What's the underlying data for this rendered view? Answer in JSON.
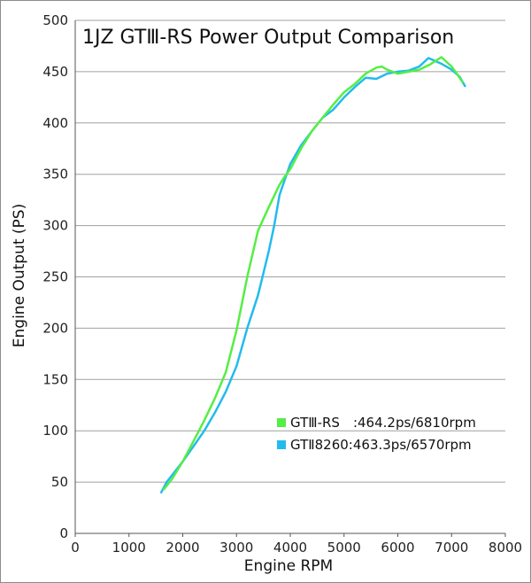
{
  "chart_data": {
    "type": "line",
    "title": "1JZ GTⅢ-RS Power Output Comparison",
    "xlabel": "Engine RPM",
    "ylabel": "Engine Output (PS)",
    "xlim": [
      0,
      8000
    ],
    "ylim": [
      0,
      500
    ],
    "xticks": [
      "0",
      "1000",
      "2000",
      "3000",
      "4000",
      "5000",
      "6000",
      "7000",
      "8000"
    ],
    "yticks": [
      "0",
      "50",
      "100",
      "150",
      "200",
      "250",
      "300",
      "350",
      "400",
      "450",
      "500"
    ],
    "grid": "horizontal",
    "legend_position": "bottom-right",
    "series": [
      {
        "name": "GTⅢ-RS　:464.2ps/6810rpm",
        "color": "#55ee44",
        "x": [
          1650,
          1800,
          2000,
          2200,
          2400,
          2600,
          2800,
          3000,
          3200,
          3400,
          3600,
          3800,
          3900,
          4000,
          4200,
          4400,
          4600,
          4800,
          5000,
          5200,
          5400,
          5600,
          5700,
          5800,
          6000,
          6200,
          6400,
          6600,
          6810,
          7000,
          7100,
          7200
        ],
        "y": [
          43,
          53,
          70,
          90,
          110,
          132,
          157,
          198,
          250,
          295,
          318,
          340,
          348,
          355,
          375,
          392,
          405,
          418,
          430,
          438,
          448,
          454,
          455,
          452,
          448,
          450,
          452,
          457,
          464.2,
          455,
          448,
          440
        ]
      },
      {
        "name": "GTⅡ8260:463.3ps/6570rpm",
        "color": "#22bbee",
        "x": [
          1600,
          1700,
          1850,
          2000,
          2200,
          2400,
          2600,
          2800,
          3000,
          3200,
          3400,
          3600,
          3700,
          3800,
          3900,
          4000,
          4200,
          4400,
          4600,
          4800,
          5000,
          5200,
          5400,
          5600,
          5800,
          6000,
          6200,
          6400,
          6570,
          6800,
          7000,
          7150,
          7250
        ],
        "y": [
          40,
          50,
          60,
          70,
          85,
          100,
          118,
          138,
          163,
          200,
          232,
          275,
          300,
          330,
          345,
          360,
          378,
          392,
          405,
          413,
          425,
          435,
          444,
          443,
          448,
          450,
          451,
          455,
          463.3,
          458,
          452,
          445,
          436
        ]
      }
    ]
  }
}
